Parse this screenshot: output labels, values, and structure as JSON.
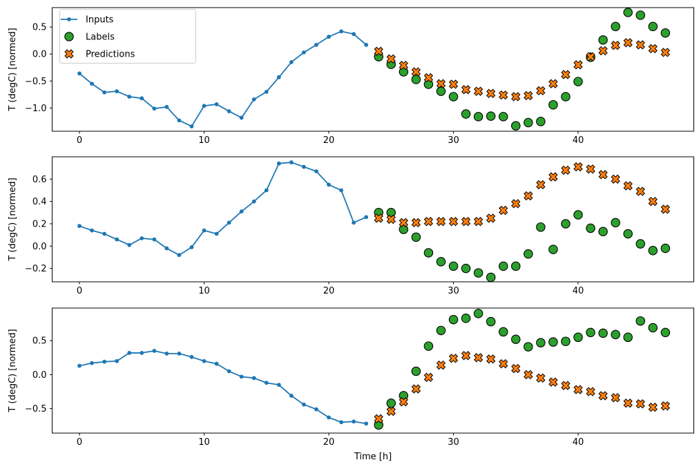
{
  "figure": {
    "xlabel": "Time [h]",
    "background": "#ffffff",
    "frame_color": "#000000",
    "text_color": "#000000"
  },
  "legend": {
    "position": "upper-left",
    "items": [
      {
        "label": "Inputs",
        "marker": "line-with-dot",
        "color": "#1f77b4"
      },
      {
        "label": "Labels",
        "marker": "filled-circle",
        "color": "#2ca02c",
        "edge_color": "#000000"
      },
      {
        "label": "Predictions",
        "marker": "filled-x",
        "color": "#ff7f0e",
        "edge_color": "#000000"
      }
    ]
  },
  "xticks": {
    "values": [
      0,
      10,
      20,
      30,
      40
    ],
    "labels": [
      "0",
      "10",
      "20",
      "30",
      "40"
    ]
  },
  "chart_data": [
    {
      "type": "line",
      "ylabel": "T (degC) [normed]",
      "xlim": [
        -2.19,
        49.28
      ],
      "ylim": [
        -1.43,
        0.86
      ],
      "yticks": {
        "values": [
          0.5,
          0.0,
          -0.5,
          -1.0
        ],
        "labels": [
          "0.5",
          "0.0",
          "−0.5",
          "−1.0"
        ]
      },
      "series": [
        {
          "name": "Inputs",
          "type": "line",
          "color": "#1f77b4",
          "x": [
            0,
            1,
            2,
            3,
            4,
            5,
            6,
            7,
            8,
            9,
            10,
            11,
            12,
            13,
            14,
            15,
            16,
            17,
            18,
            19,
            20,
            21,
            22,
            23
          ],
          "y": [
            -0.36,
            -0.55,
            -0.71,
            -0.69,
            -0.79,
            -0.82,
            -1.01,
            -0.98,
            -1.23,
            -1.34,
            -0.96,
            -0.93,
            -1.06,
            -1.18,
            -0.84,
            -0.7,
            -0.43,
            -0.15,
            0.03,
            0.17,
            0.32,
            0.42,
            0.37,
            0.17
          ]
        },
        {
          "name": "Labels",
          "type": "scatter",
          "marker": "circle",
          "color": "#2ca02c",
          "x": [
            24,
            25,
            26,
            27,
            28,
            29,
            30,
            31,
            32,
            33,
            34,
            35,
            36,
            37,
            38,
            39,
            40,
            41,
            42,
            43,
            44,
            45,
            46,
            47
          ],
          "y": [
            -0.05,
            -0.19,
            -0.33,
            -0.47,
            -0.56,
            -0.69,
            -0.79,
            -1.11,
            -1.16,
            -1.15,
            -1.16,
            -1.33,
            -1.27,
            -1.25,
            -0.94,
            -0.79,
            -0.51,
            -0.06,
            0.26,
            0.51,
            0.77,
            0.72,
            0.51,
            0.39
          ]
        },
        {
          "name": "Predictions",
          "type": "scatter",
          "marker": "X",
          "color": "#ff7f0e",
          "x": [
            24,
            25,
            26,
            27,
            28,
            29,
            30,
            31,
            32,
            33,
            34,
            35,
            36,
            37,
            38,
            39,
            40,
            41,
            42,
            43,
            44,
            45,
            46,
            47
          ],
          "y": [
            0.05,
            -0.09,
            -0.21,
            -0.33,
            -0.44,
            -0.55,
            -0.56,
            -0.66,
            -0.69,
            -0.73,
            -0.76,
            -0.79,
            -0.77,
            -0.68,
            -0.55,
            -0.38,
            -0.2,
            -0.05,
            0.06,
            0.16,
            0.21,
            0.17,
            0.1,
            0.03
          ]
        }
      ]
    },
    {
      "type": "line",
      "ylabel": "T (degC) [normed]",
      "xlim": [
        -2.19,
        49.28
      ],
      "ylim": [
        -0.32,
        0.8
      ],
      "yticks": {
        "values": [
          0.6,
          0.4,
          0.2,
          0.0,
          -0.2
        ],
        "labels": [
          "0.6",
          "0.4",
          "0.2",
          "0.0",
          "−0.2"
        ]
      },
      "series": [
        {
          "name": "Inputs",
          "type": "line",
          "color": "#1f77b4",
          "x": [
            0,
            1,
            2,
            3,
            4,
            5,
            6,
            7,
            8,
            9,
            10,
            11,
            12,
            13,
            14,
            15,
            16,
            17,
            18,
            19,
            20,
            21,
            22,
            23
          ],
          "y": [
            0.18,
            0.14,
            0.11,
            0.06,
            0.01,
            0.07,
            0.06,
            -0.02,
            -0.08,
            -0.01,
            0.14,
            0.11,
            0.21,
            0.31,
            0.4,
            0.5,
            0.74,
            0.75,
            0.71,
            0.67,
            0.55,
            0.5,
            0.21,
            0.26
          ]
        },
        {
          "name": "Labels",
          "type": "scatter",
          "marker": "circle",
          "color": "#2ca02c",
          "x": [
            24,
            25,
            26,
            27,
            28,
            29,
            30,
            31,
            32,
            33,
            34,
            35,
            36,
            37,
            38,
            39,
            40,
            41,
            42,
            43,
            44,
            45,
            46,
            47
          ],
          "y": [
            0.3,
            0.3,
            0.15,
            0.08,
            -0.06,
            -0.14,
            -0.18,
            -0.2,
            -0.24,
            -0.28,
            -0.18,
            -0.18,
            -0.07,
            0.17,
            -0.03,
            0.2,
            0.28,
            0.16,
            0.13,
            0.21,
            0.11,
            0.02,
            -0.04,
            -0.02
          ]
        },
        {
          "name": "Predictions",
          "type": "scatter",
          "marker": "X",
          "color": "#ff7f0e",
          "x": [
            24,
            25,
            26,
            27,
            28,
            29,
            30,
            31,
            32,
            33,
            34,
            35,
            36,
            37,
            38,
            39,
            40,
            41,
            42,
            43,
            44,
            45,
            46,
            47
          ],
          "y": [
            0.25,
            0.24,
            0.21,
            0.21,
            0.22,
            0.22,
            0.22,
            0.22,
            0.22,
            0.25,
            0.32,
            0.38,
            0.45,
            0.55,
            0.62,
            0.68,
            0.71,
            0.69,
            0.64,
            0.6,
            0.54,
            0.49,
            0.4,
            0.33
          ]
        }
      ]
    },
    {
      "type": "line",
      "ylabel": "T (degC) [normed]",
      "xlabel": "Time [h]",
      "xlim": [
        -2.19,
        49.28
      ],
      "ylim": [
        -0.86,
        0.98
      ],
      "yticks": {
        "values": [
          0.5,
          0.0,
          -0.5
        ],
        "labels": [
          "0.5",
          "0.0",
          "−0.5"
        ]
      },
      "series": [
        {
          "name": "Inputs",
          "type": "line",
          "color": "#1f77b4",
          "x": [
            0,
            1,
            2,
            3,
            4,
            5,
            6,
            7,
            8,
            9,
            10,
            11,
            12,
            13,
            14,
            15,
            16,
            17,
            18,
            19,
            20,
            21,
            22,
            23
          ],
          "y": [
            0.13,
            0.17,
            0.19,
            0.2,
            0.32,
            0.32,
            0.35,
            0.31,
            0.31,
            0.26,
            0.2,
            0.16,
            0.05,
            -0.03,
            -0.05,
            -0.12,
            -0.15,
            -0.31,
            -0.44,
            -0.51,
            -0.63,
            -0.7,
            -0.69,
            -0.72
          ]
        },
        {
          "name": "Labels",
          "type": "scatter",
          "marker": "circle",
          "color": "#2ca02c",
          "x": [
            24,
            25,
            26,
            27,
            28,
            29,
            30,
            31,
            32,
            33,
            34,
            35,
            36,
            37,
            38,
            39,
            40,
            41,
            42,
            43,
            44,
            45,
            46,
            47
          ],
          "y": [
            -0.74,
            -0.42,
            -0.31,
            0.05,
            0.42,
            0.65,
            0.81,
            0.83,
            0.9,
            0.78,
            0.63,
            0.52,
            0.41,
            0.47,
            0.48,
            0.49,
            0.55,
            0.62,
            0.61,
            0.59,
            0.55,
            0.79,
            0.69,
            0.62
          ]
        },
        {
          "name": "Predictions",
          "type": "scatter",
          "marker": "X",
          "color": "#ff7f0e",
          "x": [
            24,
            25,
            26,
            27,
            28,
            29,
            30,
            31,
            32,
            33,
            34,
            35,
            36,
            37,
            38,
            39,
            40,
            41,
            42,
            43,
            44,
            45,
            46,
            47
          ],
          "y": [
            -0.65,
            -0.54,
            -0.4,
            -0.21,
            -0.04,
            0.14,
            0.24,
            0.28,
            0.25,
            0.23,
            0.16,
            0.09,
            0.0,
            -0.05,
            -0.11,
            -0.16,
            -0.22,
            -0.25,
            -0.31,
            -0.34,
            -0.42,
            -0.43,
            -0.48,
            -0.46
          ]
        }
      ]
    }
  ]
}
